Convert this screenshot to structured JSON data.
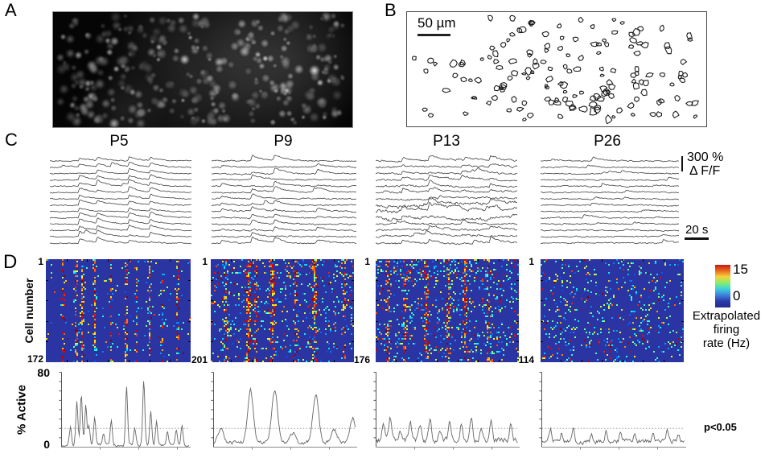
{
  "labels": {
    "a": "A",
    "b": "B",
    "c": "C",
    "d": "D"
  },
  "panel_a": {
    "gen": {
      "seed": 61,
      "cells": 330
    }
  },
  "panel_b": {
    "scale_bar": "50 µm",
    "gen": {
      "seed": 71,
      "outlines": 160
    }
  },
  "panel_c": {
    "ages": [
      "P5",
      "P9",
      "P13",
      "P26"
    ],
    "amplitude_scale_value": "300 %",
    "amplitude_scale_unit": "Δ F/F",
    "time_scale": "20 s",
    "traces": [
      {
        "events": [
          [
            0.2,
            1.0
          ],
          [
            0.325,
            0.9
          ],
          [
            0.55,
            0.95
          ],
          [
            0.7,
            0.85
          ]
        ],
        "participation": 0.85,
        "amp": 6.0,
        "noise": 0.8,
        "slow": 0.2,
        "rare": 0.15,
        "seed": 3
      },
      {
        "events": [
          [
            0.06,
            0.5
          ],
          [
            0.27,
            0.95
          ],
          [
            0.425,
            1.0
          ],
          [
            0.72,
            0.7
          ]
        ],
        "participation": 0.6,
        "amp": 6.5,
        "noise": 1.0,
        "slow": 0.5,
        "rare": 0.35,
        "seed": 5
      },
      {
        "events": [
          [
            0.18,
            0.7
          ],
          [
            0.37,
            0.9
          ],
          [
            0.6,
            0.95
          ],
          [
            0.8,
            0.75
          ]
        ],
        "participation": 0.5,
        "amp": 5.5,
        "noise": 1.3,
        "slow": 1.2,
        "rare": 0.5,
        "seed": 9,
        "heavy_rows": [
          7,
          8,
          9
        ]
      },
      {
        "events": [],
        "participation": 0,
        "amp": 4.5,
        "noise": 0.95,
        "slow": 0.3,
        "rare": 0.95,
        "seed": 13
      }
    ]
  },
  "panel_d": {
    "ylabel": "Cell number",
    "heatmaps": [
      {
        "age": "P5",
        "first_cell": "1",
        "last_cell": "172",
        "gen": {
          "density": 0.022,
          "streak": 0.1,
          "band_width": 0.006,
          "seed": 17,
          "bands": [
            [
              0.115,
              0.8
            ],
            [
              0.205,
              0.95
            ],
            [
              0.245,
              0.9
            ],
            [
              0.335,
              0.85
            ],
            [
              0.445,
              0.55
            ],
            [
              0.55,
              0.85
            ],
            [
              0.62,
              0.45
            ],
            [
              0.71,
              0.9
            ],
            [
              0.8,
              0.45
            ],
            [
              0.905,
              0.7
            ]
          ]
        }
      },
      {
        "age": "P9",
        "first_cell": "1",
        "last_cell": "201",
        "gen": {
          "density": 0.07,
          "streak": 0.5,
          "band_width": 0.009,
          "seed": 23,
          "bands": [
            [
              0.1,
              0.45
            ],
            [
              0.26,
              0.9
            ],
            [
              0.305,
              0.55
            ],
            [
              0.425,
              0.95
            ],
            [
              0.59,
              0.5
            ],
            [
              0.72,
              0.9
            ],
            [
              0.93,
              0.55
            ]
          ]
        }
      },
      {
        "age": "P13",
        "first_cell": "1",
        "last_cell": "176",
        "gen": {
          "density": 0.095,
          "streak": 0.55,
          "band_width": 0.011,
          "seed": 31,
          "bands": [
            [
              0.08,
              0.5
            ],
            [
              0.2,
              0.55
            ],
            [
              0.35,
              0.6
            ],
            [
              0.5,
              0.5
            ],
            [
              0.62,
              0.55
            ],
            [
              0.78,
              0.45
            ]
          ]
        }
      },
      {
        "age": "P26",
        "first_cell": "1",
        "last_cell": "114",
        "gen": {
          "density": 0.07,
          "streak": 0.25,
          "band_width": 0.01,
          "seed": 41,
          "bands": []
        }
      }
    ],
    "colorbar": {
      "max": "15",
      "min": "0",
      "label_lines": [
        "Extrapolated",
        "firing",
        "rate (Hz)"
      ]
    }
  },
  "panel_activity": {
    "ylabel": "% Active",
    "ymax": "80",
    "ymin": "0",
    "significance": "p<0.05",
    "threshold_pct": 20,
    "plots": [
      {
        "baseline": 2.5,
        "noise": 2.6,
        "peak_width": 0.008,
        "seed": 51,
        "peaks": [
          [
            0.07,
            18
          ],
          [
            0.12,
            46
          ],
          [
            0.155,
            54
          ],
          [
            0.19,
            42
          ],
          [
            0.215,
            20
          ],
          [
            0.26,
            30
          ],
          [
            0.33,
            12
          ],
          [
            0.39,
            26
          ],
          [
            0.51,
            62
          ],
          [
            0.575,
            18
          ],
          [
            0.645,
            70
          ],
          [
            0.7,
            36
          ],
          [
            0.745,
            24
          ],
          [
            0.83,
            14
          ],
          [
            0.9,
            15
          ],
          [
            0.945,
            21
          ]
        ]
      },
      {
        "baseline": 5,
        "noise": 3.2,
        "peak_width": 0.02,
        "seed": 52,
        "peaks": [
          [
            0.05,
            14
          ],
          [
            0.26,
            56
          ],
          [
            0.43,
            56
          ],
          [
            0.56,
            10
          ],
          [
            0.72,
            52
          ],
          [
            0.85,
            13
          ],
          [
            0.98,
            26
          ]
        ]
      },
      {
        "baseline": 7,
        "noise": 4.8,
        "peak_width": 0.01,
        "seed": 53,
        "peaks": [
          [
            0.05,
            16
          ],
          [
            0.1,
            25
          ],
          [
            0.17,
            12
          ],
          [
            0.24,
            21
          ],
          [
            0.31,
            15
          ],
          [
            0.38,
            24
          ],
          [
            0.45,
            11
          ],
          [
            0.52,
            21
          ],
          [
            0.6,
            17
          ],
          [
            0.67,
            25
          ],
          [
            0.74,
            13
          ],
          [
            0.81,
            23
          ],
          [
            0.95,
            17
          ]
        ]
      },
      {
        "baseline": 6,
        "noise": 4.2,
        "peak_width": 0.008,
        "seed": 54,
        "peaks": [
          [
            0.06,
            13
          ],
          [
            0.14,
            9
          ],
          [
            0.22,
            16
          ],
          [
            0.35,
            7
          ],
          [
            0.45,
            11
          ],
          [
            0.55,
            7
          ],
          [
            0.65,
            9
          ],
          [
            0.78,
            11
          ],
          [
            0.88,
            13
          ],
          [
            0.96,
            7
          ]
        ]
      }
    ]
  },
  "style": {
    "heatmap_bg": "#2b34a3",
    "trace_color": "#383838",
    "activity_line": "#666666",
    "threshold_line": "#999999",
    "colorbar_gradient": "linear-gradient(to bottom,#c41a12 0%,#ea6b1f 14%,#f5d33b 28%,#8aec6a 42%,#3ed3d8 56%,#3f86dd 70%,#2b3cab 85%,#232c8e 100%)"
  }
}
